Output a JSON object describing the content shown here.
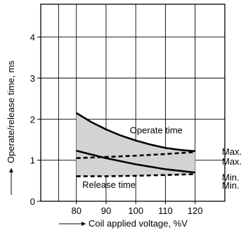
{
  "chart_data": {
    "type": "line",
    "xlabel": "Coil applied voltage, %V",
    "ylabel": "Operate/release time, ms",
    "x_ticks": [
      80,
      90,
      100,
      110,
      120
    ],
    "y_ticks": [
      0,
      1,
      2,
      3,
      4
    ],
    "xlim": [
      68,
      130
    ],
    "ylim": [
      0,
      4.8
    ],
    "grid": true,
    "series": [
      {
        "name": "Operate time (Max.)",
        "style": "solid",
        "shaded_band": "operate",
        "x": [
          80,
          85,
          90,
          95,
          100,
          105,
          110,
          115,
          120
        ],
        "y": [
          2.15,
          1.93,
          1.75,
          1.6,
          1.48,
          1.38,
          1.3,
          1.25,
          1.22
        ]
      },
      {
        "name": "Operate time (Min.)",
        "style": "solid",
        "shaded_band": "operate",
        "x": [
          80,
          90,
          100,
          110,
          120
        ],
        "y": [
          1.23,
          1.05,
          0.9,
          0.78,
          0.7
        ]
      },
      {
        "name": "Release time (Max.)",
        "style": "dashed",
        "shaded_band": "release",
        "x": [
          80,
          90,
          100,
          110,
          120
        ],
        "y": [
          1.05,
          1.08,
          1.11,
          1.15,
          1.2
        ]
      },
      {
        "name": "Release time (Min.)",
        "style": "dashed",
        "shaded_band": "release",
        "x": [
          80,
          90,
          100,
          110,
          120
        ],
        "y": [
          0.61,
          0.61,
          0.62,
          0.64,
          0.66
        ]
      }
    ],
    "annotations": {
      "operate": "Operate time",
      "release": "Release time",
      "right_labels": [
        "Max.",
        "Max.",
        "Min.",
        "Min."
      ]
    },
    "colors": {
      "band": "#d3d3d3",
      "line": "#000000",
      "grid": "#000000"
    }
  }
}
